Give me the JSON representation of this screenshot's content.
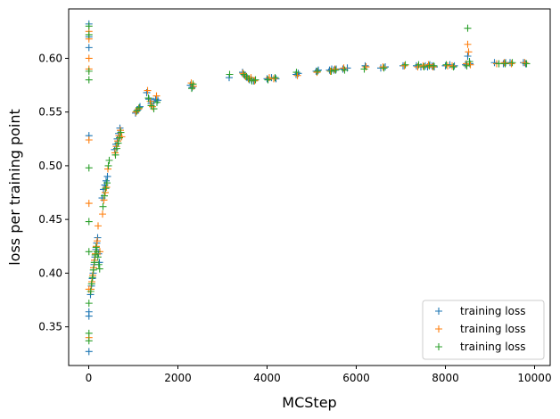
{
  "chart_data": {
    "type": "scatter",
    "title": "",
    "xlabel": "MCStep",
    "ylabel": "loss per training point",
    "xlim": [
      -450,
      10350
    ],
    "ylim": [
      0.314,
      0.646
    ],
    "xticks": [
      0,
      2000,
      4000,
      6000,
      8000,
      10000
    ],
    "yticks": [
      0.35,
      0.4,
      0.45,
      0.5,
      0.55,
      0.6
    ],
    "ytick_labels": [
      "0.35",
      "0.40",
      "0.45",
      "0.50",
      "0.55",
      "0.60"
    ],
    "grid": false,
    "legend_position": "lower-right",
    "marker": "plus",
    "series": [
      {
        "name": "training loss",
        "color": "#1f77b4",
        "points": [
          [
            5,
            0.632
          ],
          [
            5,
            0.62
          ],
          [
            5,
            0.61
          ],
          [
            5,
            0.528
          ],
          [
            5,
            0.364
          ],
          [
            5,
            0.36
          ],
          [
            5,
            0.327
          ],
          [
            40,
            0.38
          ],
          [
            60,
            0.388
          ],
          [
            80,
            0.395
          ],
          [
            100,
            0.4
          ],
          [
            120,
            0.408
          ],
          [
            140,
            0.415
          ],
          [
            160,
            0.422
          ],
          [
            180,
            0.428
          ],
          [
            200,
            0.433
          ],
          [
            220,
            0.418
          ],
          [
            240,
            0.41
          ],
          [
            300,
            0.47
          ],
          [
            330,
            0.478
          ],
          [
            360,
            0.482
          ],
          [
            390,
            0.486
          ],
          [
            420,
            0.49
          ],
          [
            580,
            0.515
          ],
          [
            610,
            0.52
          ],
          [
            640,
            0.525
          ],
          [
            670,
            0.53
          ],
          [
            700,
            0.535
          ],
          [
            1050,
            0.549
          ],
          [
            1100,
            0.552
          ],
          [
            1150,
            0.555
          ],
          [
            1300,
            0.568
          ],
          [
            1350,
            0.562
          ],
          [
            1400,
            0.558
          ],
          [
            1450,
            0.56
          ],
          [
            1500,
            0.562
          ],
          [
            1550,
            0.561
          ],
          [
            2280,
            0.575
          ],
          [
            2320,
            0.573
          ],
          [
            3150,
            0.582
          ],
          [
            3450,
            0.587
          ],
          [
            3500,
            0.584
          ],
          [
            3550,
            0.582
          ],
          [
            3600,
            0.58
          ],
          [
            3650,
            0.58
          ],
          [
            3700,
            0.579
          ],
          [
            4000,
            0.581
          ],
          [
            4100,
            0.582
          ],
          [
            4200,
            0.581
          ],
          [
            4650,
            0.585
          ],
          [
            4700,
            0.586
          ],
          [
            5100,
            0.588
          ],
          [
            5150,
            0.589
          ],
          [
            5400,
            0.589
          ],
          [
            5450,
            0.59
          ],
          [
            5500,
            0.589
          ],
          [
            5550,
            0.59
          ],
          [
            5700,
            0.59
          ],
          [
            5800,
            0.591
          ],
          [
            6200,
            0.593
          ],
          [
            6550,
            0.591
          ],
          [
            6650,
            0.592
          ],
          [
            7050,
            0.593
          ],
          [
            7350,
            0.593
          ],
          [
            7450,
            0.592
          ],
          [
            7550,
            0.593
          ],
          [
            7600,
            0.592
          ],
          [
            7650,
            0.594
          ],
          [
            7700,
            0.593
          ],
          [
            7750,
            0.592
          ],
          [
            8000,
            0.593
          ],
          [
            8100,
            0.594
          ],
          [
            8200,
            0.593
          ],
          [
            8450,
            0.594
          ],
          [
            8500,
            0.602
          ],
          [
            8550,
            0.595
          ],
          [
            9100,
            0.596
          ],
          [
            9300,
            0.595
          ],
          [
            9350,
            0.596
          ],
          [
            9450,
            0.596
          ],
          [
            9750,
            0.596
          ],
          [
            9800,
            0.595
          ]
        ]
      },
      {
        "name": "training loss",
        "color": "#ff7f0e",
        "points": [
          [
            5,
            0.625
          ],
          [
            5,
            0.618
          ],
          [
            5,
            0.6
          ],
          [
            5,
            0.59
          ],
          [
            5,
            0.524
          ],
          [
            5,
            0.465
          ],
          [
            5,
            0.385
          ],
          [
            5,
            0.34
          ],
          [
            50,
            0.385
          ],
          [
            70,
            0.392
          ],
          [
            90,
            0.398
          ],
          [
            110,
            0.405
          ],
          [
            130,
            0.412
          ],
          [
            150,
            0.418
          ],
          [
            170,
            0.425
          ],
          [
            190,
            0.43
          ],
          [
            210,
            0.444
          ],
          [
            250,
            0.42
          ],
          [
            310,
            0.455
          ],
          [
            340,
            0.468
          ],
          [
            370,
            0.475
          ],
          [
            400,
            0.48
          ],
          [
            430,
            0.497
          ],
          [
            590,
            0.512
          ],
          [
            620,
            0.518
          ],
          [
            650,
            0.523
          ],
          [
            680,
            0.528
          ],
          [
            710,
            0.533
          ],
          [
            740,
            0.527
          ],
          [
            1060,
            0.55
          ],
          [
            1120,
            0.553
          ],
          [
            1320,
            0.57
          ],
          [
            1380,
            0.56
          ],
          [
            1430,
            0.555
          ],
          [
            1520,
            0.565
          ],
          [
            2300,
            0.577
          ],
          [
            2350,
            0.574
          ],
          [
            3460,
            0.586
          ],
          [
            3520,
            0.583
          ],
          [
            3580,
            0.581
          ],
          [
            3640,
            0.582
          ],
          [
            3720,
            0.579
          ],
          [
            4050,
            0.582
          ],
          [
            4150,
            0.581
          ],
          [
            4680,
            0.584
          ],
          [
            5120,
            0.587
          ],
          [
            5420,
            0.588
          ],
          [
            5520,
            0.59
          ],
          [
            5720,
            0.591
          ],
          [
            6220,
            0.592
          ],
          [
            6600,
            0.592
          ],
          [
            7080,
            0.593
          ],
          [
            7380,
            0.592
          ],
          [
            7500,
            0.593
          ],
          [
            7620,
            0.594
          ],
          [
            7720,
            0.592
          ],
          [
            8050,
            0.593
          ],
          [
            8150,
            0.593
          ],
          [
            8470,
            0.595
          ],
          [
            8500,
            0.613
          ],
          [
            8520,
            0.606
          ],
          [
            8560,
            0.594
          ],
          [
            9150,
            0.595
          ],
          [
            9320,
            0.596
          ],
          [
            9480,
            0.595
          ],
          [
            9780,
            0.596
          ]
        ]
      },
      {
        "name": "training loss",
        "color": "#2ca02c",
        "points": [
          [
            5,
            0.63
          ],
          [
            5,
            0.622
          ],
          [
            5,
            0.588
          ],
          [
            5,
            0.58
          ],
          [
            5,
            0.498
          ],
          [
            5,
            0.448
          ],
          [
            5,
            0.42
          ],
          [
            5,
            0.372
          ],
          [
            5,
            0.344
          ],
          [
            5,
            0.337
          ],
          [
            45,
            0.383
          ],
          [
            65,
            0.39
          ],
          [
            85,
            0.396
          ],
          [
            105,
            0.403
          ],
          [
            125,
            0.41
          ],
          [
            145,
            0.417
          ],
          [
            165,
            0.424
          ],
          [
            185,
            0.42
          ],
          [
            205,
            0.415
          ],
          [
            225,
            0.408
          ],
          [
            245,
            0.404
          ],
          [
            320,
            0.462
          ],
          [
            350,
            0.472
          ],
          [
            380,
            0.479
          ],
          [
            410,
            0.484
          ],
          [
            440,
            0.5
          ],
          [
            460,
            0.505
          ],
          [
            600,
            0.51
          ],
          [
            630,
            0.516
          ],
          [
            660,
            0.521
          ],
          [
            690,
            0.526
          ],
          [
            720,
            0.531
          ],
          [
            1080,
            0.551
          ],
          [
            1130,
            0.554
          ],
          [
            1340,
            0.563
          ],
          [
            1400,
            0.556
          ],
          [
            1460,
            0.553
          ],
          [
            1530,
            0.559
          ],
          [
            2310,
            0.572
          ],
          [
            2340,
            0.576
          ],
          [
            3160,
            0.585
          ],
          [
            3480,
            0.585
          ],
          [
            3540,
            0.583
          ],
          [
            3600,
            0.581
          ],
          [
            3660,
            0.579
          ],
          [
            3740,
            0.58
          ],
          [
            4020,
            0.58
          ],
          [
            4180,
            0.582
          ],
          [
            4660,
            0.587
          ],
          [
            5130,
            0.588
          ],
          [
            5440,
            0.588
          ],
          [
            5540,
            0.589
          ],
          [
            5740,
            0.589
          ],
          [
            6180,
            0.59
          ],
          [
            6620,
            0.591
          ],
          [
            7100,
            0.594
          ],
          [
            7400,
            0.594
          ],
          [
            7520,
            0.592
          ],
          [
            7640,
            0.593
          ],
          [
            7740,
            0.593
          ],
          [
            8020,
            0.594
          ],
          [
            8180,
            0.592
          ],
          [
            8480,
            0.593
          ],
          [
            8500,
            0.628
          ],
          [
            8540,
            0.597
          ],
          [
            9200,
            0.595
          ],
          [
            9340,
            0.595
          ],
          [
            9500,
            0.596
          ],
          [
            9820,
            0.595
          ]
        ]
      }
    ]
  }
}
